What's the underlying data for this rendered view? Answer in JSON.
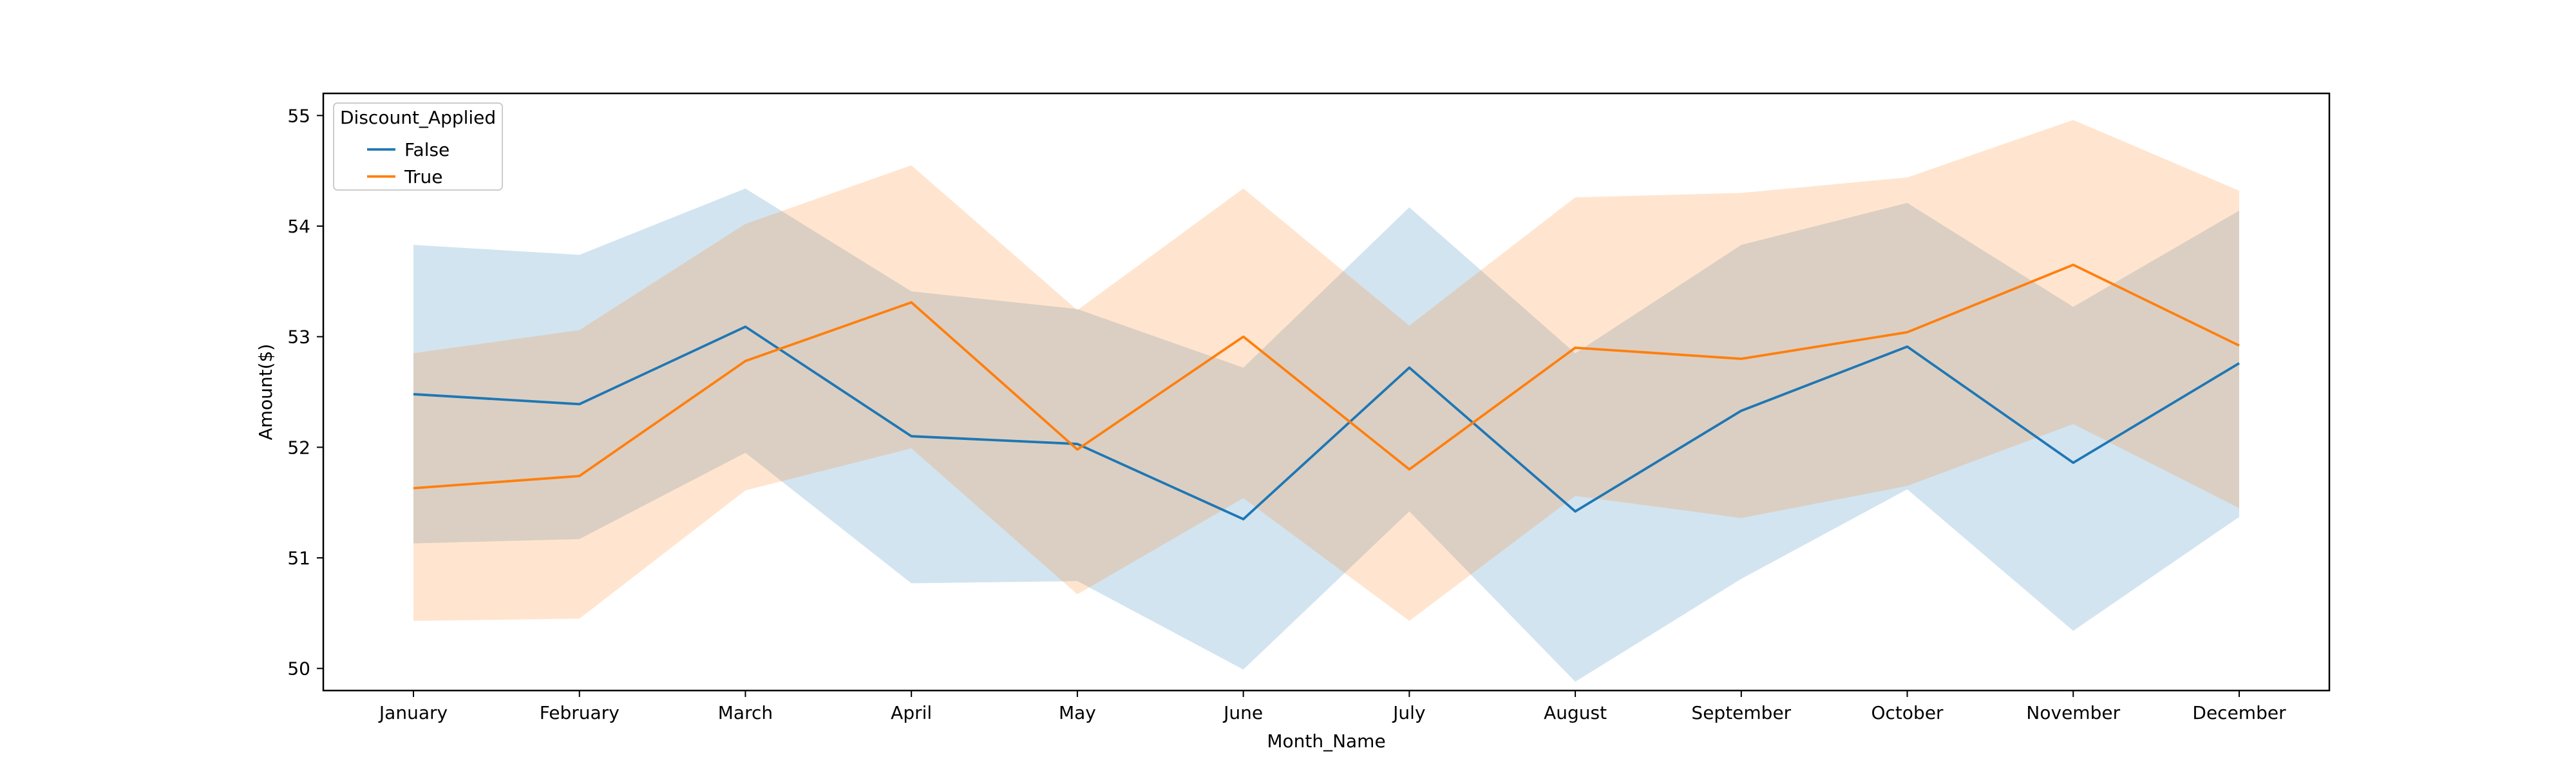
{
  "chart_data": {
    "type": "line",
    "title": "",
    "xlabel": "Month_Name",
    "ylabel": "Amount($)",
    "categories": [
      "January",
      "February",
      "March",
      "April",
      "May",
      "June",
      "July",
      "August",
      "September",
      "October",
      "November",
      "December"
    ],
    "ylim": [
      49.8,
      55.2
    ],
    "yticks": [
      50,
      51,
      52,
      53,
      54,
      55
    ],
    "grid": false,
    "legend": {
      "title": "Discount_Applied",
      "placement": "top-left"
    },
    "series": [
      {
        "name": "False",
        "color": "#1f77b4",
        "band_color": "#1f77b4",
        "values": [
          52.48,
          52.39,
          53.09,
          52.1,
          52.03,
          51.35,
          52.72,
          51.42,
          52.33,
          52.91,
          51.86,
          52.76
        ],
        "ci_upper": [
          53.83,
          53.74,
          54.34,
          53.41,
          53.25,
          52.72,
          54.17,
          52.85,
          53.83,
          54.21,
          53.27,
          54.14
        ],
        "ci_lower": [
          51.13,
          51.17,
          51.95,
          50.77,
          50.79,
          49.99,
          51.42,
          49.88,
          50.81,
          51.62,
          50.34,
          51.37
        ]
      },
      {
        "name": "True",
        "color": "#ff7f0e",
        "band_color": "#ff7f0e",
        "values": [
          51.63,
          51.74,
          52.78,
          53.31,
          51.98,
          53.0,
          51.8,
          52.9,
          52.8,
          53.04,
          53.65,
          52.92
        ],
        "ci_upper": [
          52.85,
          53.06,
          54.02,
          54.55,
          53.24,
          54.34,
          53.1,
          54.26,
          54.3,
          54.44,
          54.96,
          54.32
        ],
        "ci_lower": [
          50.43,
          50.45,
          51.61,
          51.99,
          50.67,
          51.54,
          50.43,
          51.56,
          51.36,
          51.65,
          52.21,
          51.45
        ]
      }
    ]
  }
}
